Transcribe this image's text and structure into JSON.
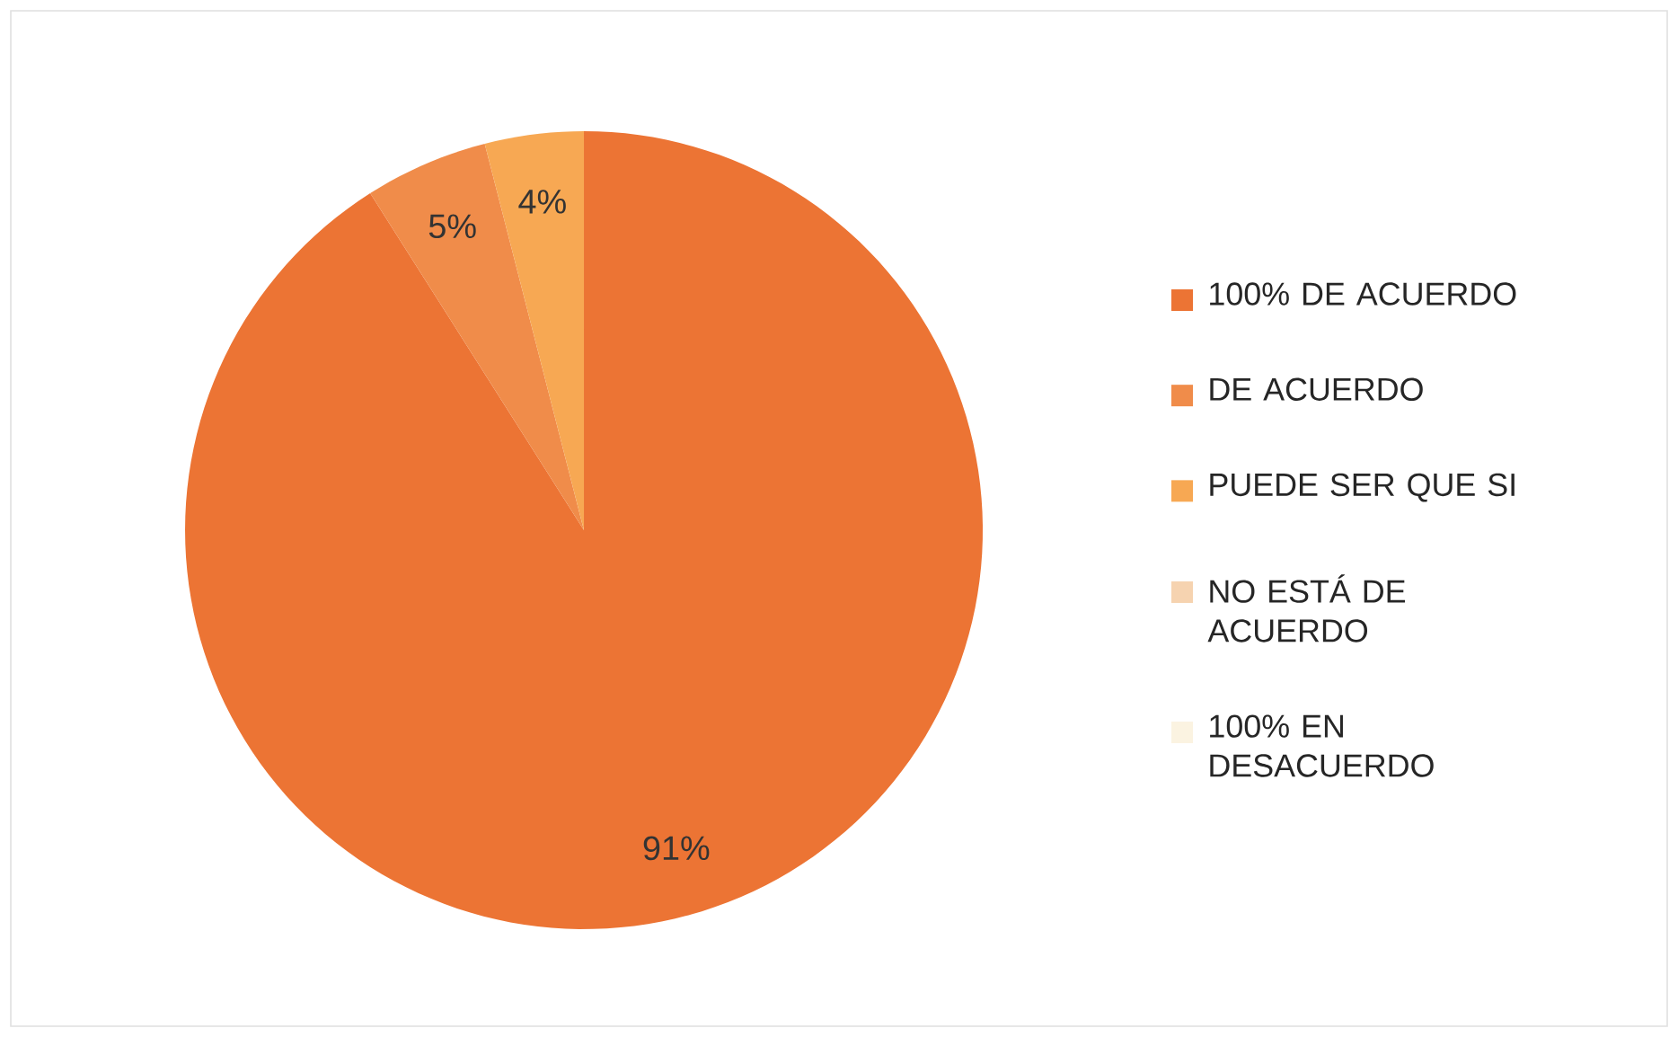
{
  "chart_data": {
    "type": "pie",
    "categories": [
      "100% DE ACUERDO",
      "DE ACUERDO",
      "PUEDE SER QUE SI",
      "NO ESTÁ DE ACUERDO",
      "100% EN DESACUERDO"
    ],
    "values": [
      91,
      5,
      4,
      0,
      0
    ],
    "colors": [
      "#ec7434",
      "#f08c4a",
      "#f7a853",
      "#f6d3b0",
      "#fbf3e1"
    ],
    "value_labels": [
      "91%",
      "5%",
      "4%",
      null,
      null
    ],
    "legend": "right"
  }
}
